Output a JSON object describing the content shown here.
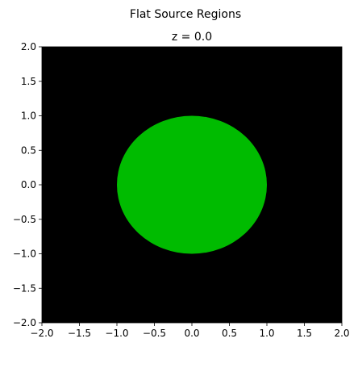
{
  "chart_data": {
    "type": "heatmap",
    "suptitle": "Flat Source Regions",
    "title": "z = 0.0",
    "xlabel": "",
    "ylabel": "",
    "xlim": [
      -2.0,
      2.0
    ],
    "ylim": [
      -2.0,
      2.0
    ],
    "xticks": [
      "-2.0",
      "-1.5",
      "-1.0",
      "-0.5",
      "0.0",
      "0.5",
      "1.0",
      "1.5",
      "2.0"
    ],
    "yticks": [
      "2.0",
      "1.5",
      "1.0",
      "0.5",
      "0.0",
      "-0.5",
      "-1.0",
      "-1.5",
      "-2.0"
    ],
    "grid": false,
    "background_color": "#000000",
    "regions": [
      {
        "shape": "circle",
        "center": [
          0.0,
          0.0
        ],
        "radius": 1.0,
        "color": "#00bb00"
      }
    ]
  }
}
